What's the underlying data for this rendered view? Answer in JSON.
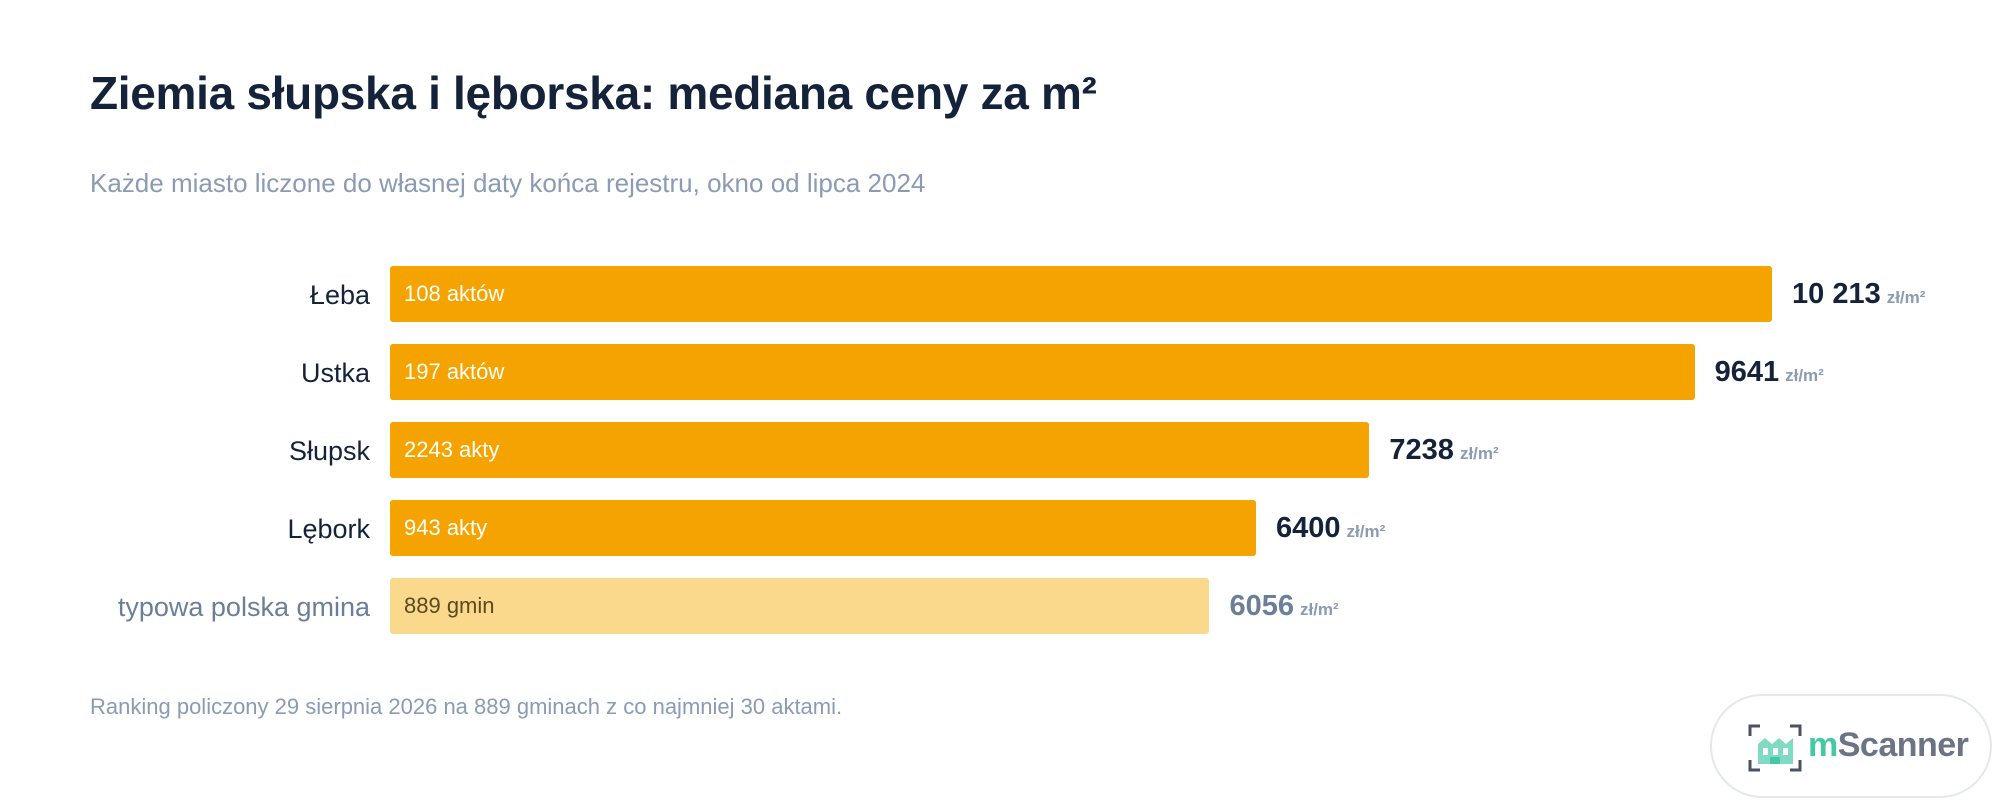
{
  "header": {
    "title": "Ziemia słupska i lęborska: mediana ceny za m²",
    "subtitle": "Każde miasto liczone do własnej daty końca rejestru, okno od lipca 2024"
  },
  "chart_data": {
    "type": "bar",
    "orientation": "horizontal",
    "categories": [
      "Łeba",
      "Ustka",
      "Słupsk",
      "Lębork",
      "typowa polska gmina"
    ],
    "values": [
      10213,
      9641,
      7238,
      6400,
      6056
    ],
    "value_labels": [
      "10 213",
      "9641",
      "7238",
      "6400",
      "6056"
    ],
    "unit": "zł/m²",
    "bar_labels": [
      "108 aktów",
      "197 aktów",
      "2243 akty",
      "943 akty",
      "889 gmin"
    ],
    "reference_index": 4,
    "grid": false,
    "legend": "none",
    "colors": {
      "primary": "#f4a300",
      "reference": "#fad88c"
    }
  },
  "footer": {
    "note": "Ranking policzony 29 sierpnia 2026 na 889 gminach z co najmniej 30 aktami."
  },
  "branding": {
    "logo_icon": "building-scan-icon",
    "logo_m": "m",
    "logo_rest": "Scanner"
  }
}
